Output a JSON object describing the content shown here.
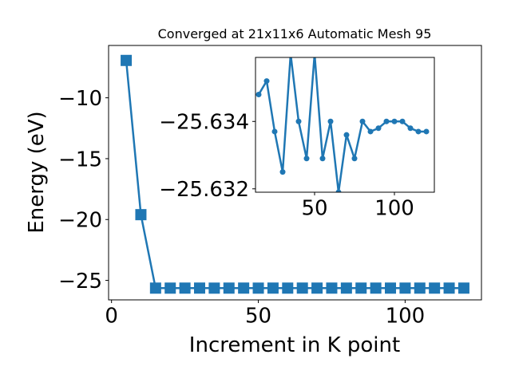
{
  "chart_data": [
    {
      "type": "line",
      "title": "Converged at 21x11x6 Automatic Mesh 95",
      "xlabel": "Increment in K point",
      "ylabel": "Energy (eV)",
      "xlim": [
        -1.0,
        126.0
      ],
      "ylim": [
        -26.6,
        -5.7
      ],
      "xticks": [
        0,
        50,
        100
      ],
      "xtick_labels": [
        "0",
        "50",
        "100"
      ],
      "yticks": [
        -10,
        -15,
        -20,
        -25
      ],
      "ytick_labels": [
        "−10",
        "−15",
        "−20",
        "−25"
      ],
      "grid": false,
      "marker": "square",
      "color": "#1f77b4",
      "series": [
        {
          "x": [
            5,
            10,
            15,
            20,
            25,
            30,
            35,
            40,
            45,
            50,
            55,
            60,
            65,
            70,
            75,
            80,
            85,
            90,
            95,
            100,
            105,
            110,
            115,
            120
          ],
          "y": [
            -6.93,
            -19.6,
            -25.6348,
            -25.6352,
            -25.6337,
            -25.6325,
            -25.636,
            -25.634,
            -25.6329,
            -25.636,
            -25.6329,
            -25.634,
            -25.6319,
            -25.6336,
            -25.6329,
            -25.634,
            -25.6337,
            -25.6338,
            -25.634,
            -25.634,
            -25.634,
            -25.6338,
            -25.6337,
            -25.6337
          ]
        }
      ]
    },
    {
      "type": "line",
      "title": "",
      "xlim": [
        13.0,
        125.0
      ],
      "ylim": [
        -25.6319,
        -25.6359
      ],
      "xticks": [
        50,
        100
      ],
      "xtick_labels": [
        "50",
        "100"
      ],
      "yticks": [
        -25.634,
        -25.632
      ],
      "ytick_labels": [
        "−25.634",
        "−25.632"
      ],
      "grid": false,
      "marker": "circle",
      "color": "#1f77b4",
      "series": [
        {
          "x": [
            15,
            20,
            25,
            30,
            35,
            40,
            45,
            50,
            55,
            60,
            65,
            70,
            75,
            80,
            85,
            90,
            95,
            100,
            105,
            110,
            115,
            120
          ],
          "y": [
            -25.6348,
            -25.6352,
            -25.6337,
            -25.6325,
            -25.636,
            -25.634,
            -25.6329,
            -25.636,
            -25.6329,
            -25.634,
            -25.6319,
            -25.6336,
            -25.6329,
            -25.634,
            -25.6337,
            -25.6338,
            -25.634,
            -25.634,
            -25.634,
            -25.6338,
            -25.6337,
            -25.6337
          ]
        }
      ]
    }
  ]
}
